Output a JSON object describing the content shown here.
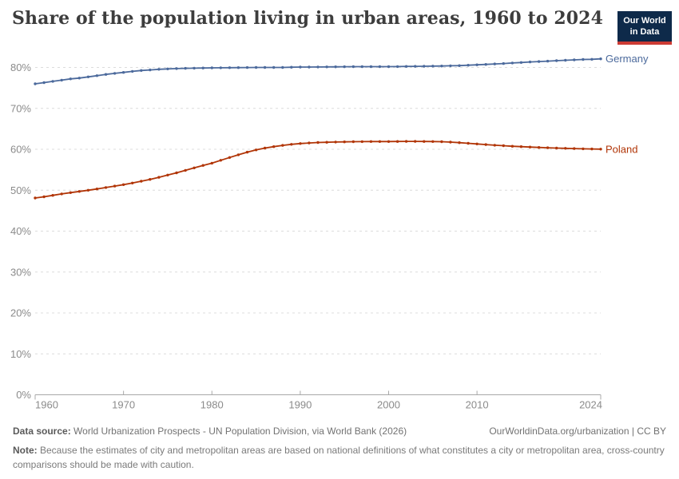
{
  "header": {
    "title": "Share of the population living in urban areas, 1960 to 2024",
    "logo_line1": "Our World",
    "logo_line2": "in Data",
    "logo_bg_color": "#0e2a4a",
    "logo_bar_color": "#cc3b34"
  },
  "footer": {
    "data_source_label": "Data source:",
    "data_source_text": " World Urbanization Prospects - UN Population Division, via World Bank (2026)",
    "attribution": "OurWorldinData.org/urbanization | CC BY",
    "note_label": "Note:",
    "note_text": " Because the estimates of city and metropolitan areas are based on national definitions of what constitutes a city or metropolitan area, cross-country comparisons should be made with caution."
  },
  "chart_data": {
    "type": "line",
    "title": "Share of the population living in urban areas, 1960 to 2024",
    "xlabel": "",
    "ylabel": "",
    "x_min": 1960,
    "x_max": 2024,
    "ylim": [
      0,
      85
    ],
    "grid": "horizontal-dashed",
    "legend_position": "end-of-line-labels",
    "x_ticks": [
      {
        "value": 1960,
        "label": "1960"
      },
      {
        "value": 1970,
        "label": "1970"
      },
      {
        "value": 1980,
        "label": "1980"
      },
      {
        "value": 1990,
        "label": "1990"
      },
      {
        "value": 2000,
        "label": "2000"
      },
      {
        "value": 2010,
        "label": "2010"
      },
      {
        "value": 2024,
        "label": "2024"
      }
    ],
    "y_ticks": [
      {
        "value": 0,
        "label": "0%"
      },
      {
        "value": 10,
        "label": "10%"
      },
      {
        "value": 20,
        "label": "20%"
      },
      {
        "value": 30,
        "label": "30%"
      },
      {
        "value": 40,
        "label": "40%"
      },
      {
        "value": 50,
        "label": "50%"
      },
      {
        "value": 60,
        "label": "60%"
      },
      {
        "value": 70,
        "label": "70%"
      },
      {
        "value": 80,
        "label": "80%"
      }
    ],
    "years": {
      "start": 1960,
      "end": 2024,
      "step": 1
    },
    "series": [
      {
        "name": "Germany",
        "color": "#4c6a9c",
        "values": [
          76.0,
          76.3,
          76.6,
          76.9,
          77.2,
          77.4,
          77.7,
          78.0,
          78.3,
          78.55,
          78.8,
          79.05,
          79.25,
          79.4,
          79.55,
          79.65,
          79.72,
          79.78,
          79.83,
          79.87,
          79.9,
          79.93,
          79.95,
          79.97,
          79.98,
          80.0,
          80.0,
          80.0,
          80.0,
          80.05,
          80.1,
          80.1,
          80.12,
          80.14,
          80.16,
          80.18,
          80.2,
          80.2,
          80.2,
          80.2,
          80.2,
          80.22,
          80.25,
          80.28,
          80.3,
          80.33,
          80.36,
          80.4,
          80.45,
          80.55,
          80.65,
          80.75,
          80.85,
          80.95,
          81.1,
          81.2,
          81.35,
          81.45,
          81.55,
          81.65,
          81.75,
          81.85,
          81.95,
          82.0,
          82.1
        ]
      },
      {
        "name": "Poland",
        "color": "#b13507",
        "values": [
          48.1,
          48.4,
          48.75,
          49.1,
          49.4,
          49.7,
          50.0,
          50.3,
          50.65,
          51.0,
          51.35,
          51.75,
          52.2,
          52.65,
          53.15,
          53.7,
          54.25,
          54.85,
          55.45,
          56.05,
          56.6,
          57.3,
          58.0,
          58.65,
          59.3,
          59.85,
          60.3,
          60.65,
          60.95,
          61.2,
          61.4,
          61.55,
          61.65,
          61.72,
          61.78,
          61.82,
          61.85,
          61.88,
          61.9,
          61.9,
          61.9,
          61.92,
          61.93,
          61.93,
          61.92,
          61.9,
          61.85,
          61.75,
          61.62,
          61.47,
          61.3,
          61.15,
          61.0,
          60.87,
          60.75,
          60.64,
          60.54,
          60.45,
          60.37,
          60.3,
          60.23,
          60.17,
          60.12,
          60.07,
          60.03
        ]
      }
    ]
  }
}
